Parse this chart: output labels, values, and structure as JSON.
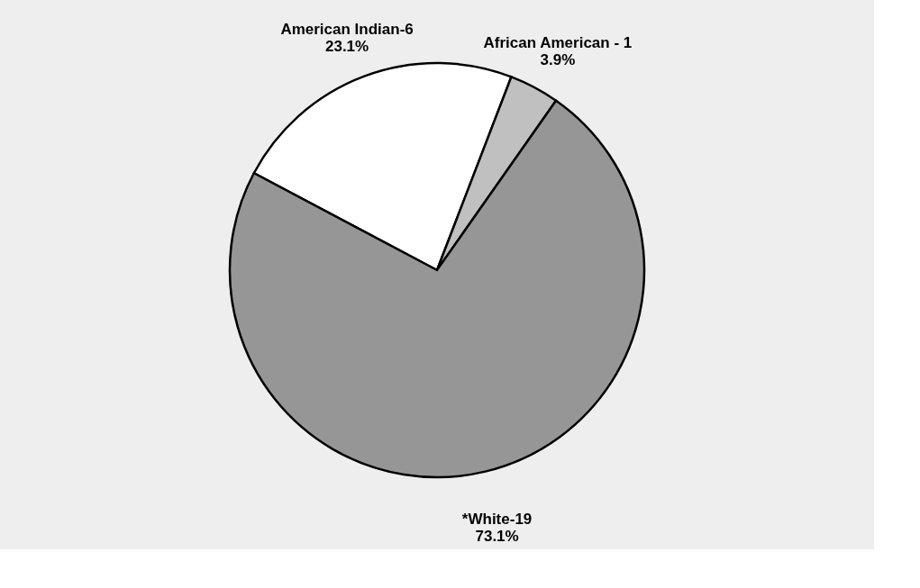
{
  "chart_data": {
    "type": "pie",
    "categories": [
      "American Indian-6",
      "African American - 1",
      "*White-19"
    ],
    "values": [
      23.1,
      3.9,
      73.1
    ],
    "value_labels": [
      "23.1%",
      "3.9%",
      "73.1%"
    ],
    "colors": [
      "#ffffff",
      "#c0c0c0",
      "#969696"
    ],
    "legend": false
  }
}
